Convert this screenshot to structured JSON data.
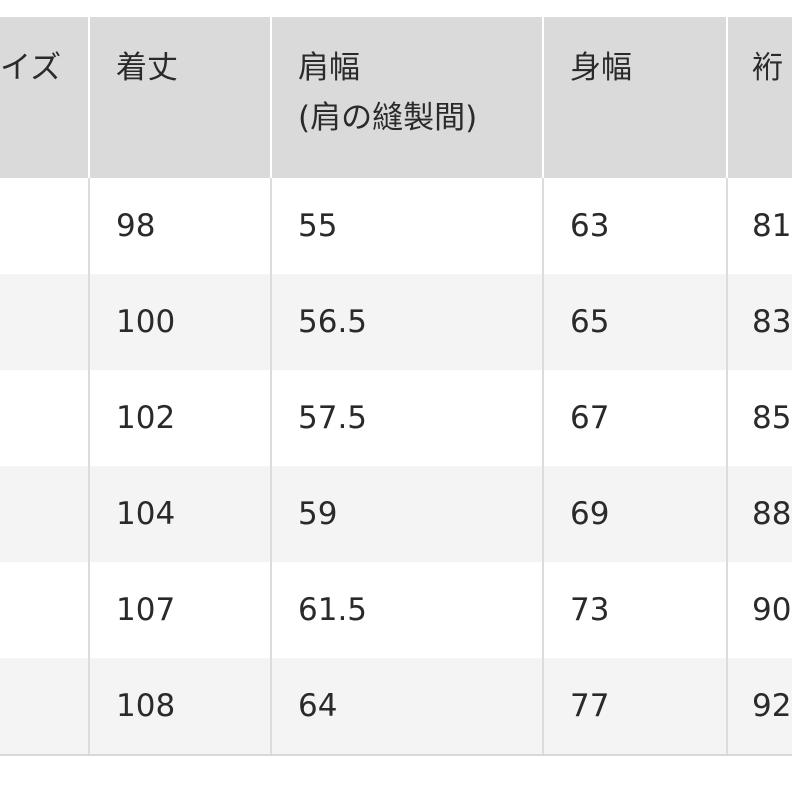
{
  "table": {
    "headers": [
      "イズ",
      "着丈",
      "肩幅\n(肩の縫製間)",
      "身幅",
      "裄"
    ],
    "header_lines": {
      "shoulder_line1": "肩幅",
      "shoulder_line2": "(肩の縫製間)"
    },
    "rows": [
      [
        "",
        "98",
        "55",
        "63",
        "81"
      ],
      [
        "",
        "100",
        "56.5",
        "65",
        "83"
      ],
      [
        "",
        "102",
        "57.5",
        "67",
        "85"
      ],
      [
        "",
        "104",
        "59",
        "69",
        "88"
      ],
      [
        "",
        "107",
        "61.5",
        "73",
        "90"
      ],
      [
        "",
        "108",
        "64",
        "77",
        "92"
      ]
    ]
  },
  "colors": {
    "header_bg": "#dadada",
    "alt_row_bg": "#f4f4f4",
    "text": "#2a2a2a"
  }
}
